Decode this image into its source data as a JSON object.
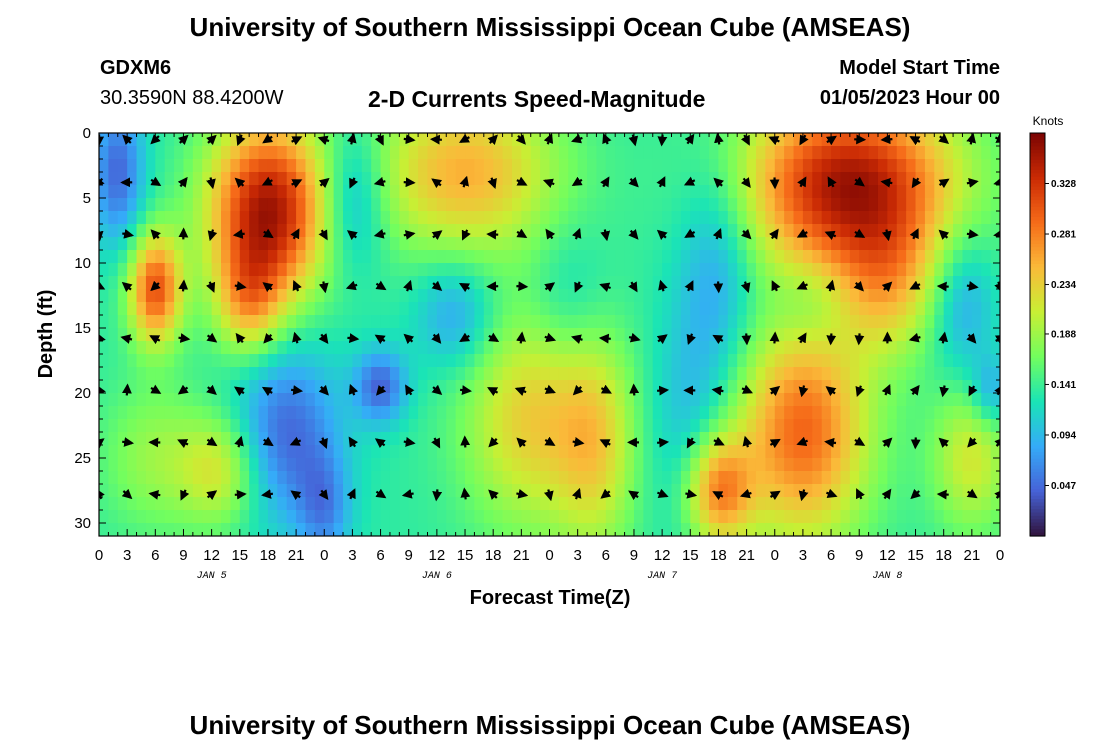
{
  "header": {
    "title": "University of Southern Mississippi Ocean Cube (AMSEAS)",
    "station_id": "GDXM6",
    "station_coords": "30.3590N  88.4200W",
    "plot_title": "2-D Currents Speed-Magnitude",
    "model_start_label": "Model Start Time",
    "model_start_value": "01/05/2023 Hour 00"
  },
  "footer": {
    "title": "University of Southern Mississippi Ocean Cube (AMSEAS)"
  },
  "colors": {
    "colormap": [
      "#30123b",
      "#4662d7",
      "#35abf8",
      "#1ae4b6",
      "#72fe5e",
      "#c8ef34",
      "#faba39",
      "#f66b19",
      "#ca2a04",
      "#7a0403"
    ]
  },
  "chart_data": {
    "type": "heatmap",
    "xlabel": "Forecast Time(Z)",
    "ylabel": "Depth (ft)",
    "xlim": [
      0,
      96
    ],
    "ylim": [
      0,
      31
    ],
    "x_ticks": [
      0,
      3,
      6,
      9,
      12,
      15,
      18,
      21,
      24,
      27,
      30,
      33,
      36,
      39,
      42,
      45,
      48,
      51,
      54,
      57,
      60,
      63,
      66,
      69,
      72,
      75,
      78,
      81,
      84,
      87,
      90,
      93,
      96
    ],
    "x_tick_labels": [
      "0",
      "3",
      "6",
      "9",
      "12",
      "15",
      "18",
      "21",
      "0",
      "3",
      "6",
      "9",
      "12",
      "15",
      "18",
      "21",
      "0",
      "3",
      "6",
      "9",
      "12",
      "15",
      "18",
      "21",
      "0",
      "3",
      "6",
      "9",
      "12",
      "15",
      "18",
      "21",
      "0"
    ],
    "y_ticks": [
      0,
      5,
      10,
      15,
      20,
      25,
      30
    ],
    "y_tick_labels": [
      "0",
      "5",
      "10",
      "15",
      "20",
      "25",
      "30"
    ],
    "date_labels": [
      {
        "x": 12,
        "label": "JAN 5"
      },
      {
        "x": 36,
        "label": "JAN 6"
      },
      {
        "x": 60,
        "label": "JAN 7"
      },
      {
        "x": 84,
        "label": "JAN 8"
      }
    ],
    "colorbar": {
      "title": "Knots",
      "range": [
        0,
        0.375
      ],
      "ticks": [
        0.047,
        0.094,
        0.141,
        0.188,
        0.234,
        0.281,
        0.328
      ],
      "tick_labels": [
        "0.047",
        "0.094",
        "0.141",
        "0.188",
        "0.234",
        "0.281",
        "0.328"
      ]
    },
    "arrow_depths_ft": [
      0.5,
      3.8,
      7.8,
      11.8,
      15.8,
      19.8,
      23.8,
      27.8
    ],
    "arrow_times_h": [
      0,
      3,
      6,
      9,
      12,
      15,
      18,
      21,
      24,
      27,
      30,
      33,
      36,
      39,
      42,
      45,
      48,
      51,
      54,
      57,
      60,
      63,
      66,
      69,
      72,
      75,
      78,
      81,
      84,
      87,
      90,
      93,
      96
    ],
    "speed_blobs_knots": [
      {
        "t": 2,
        "d": 3,
        "st": 2,
        "sd": 4,
        "amp": -0.09
      },
      {
        "t": 6,
        "d": 12,
        "st": 2,
        "sd": 3,
        "amp": 0.17
      },
      {
        "t": 18,
        "d": 6,
        "st": 4.5,
        "sd": 5,
        "amp": 0.22
      },
      {
        "t": 16,
        "d": 13,
        "st": 2.5,
        "sd": 3,
        "amp": 0.09
      },
      {
        "t": 6,
        "d": 25,
        "st": 4,
        "sd": 4,
        "amp": 0.05
      },
      {
        "t": 13,
        "d": 26,
        "st": 3,
        "sd": 3,
        "amp": 0.08
      },
      {
        "t": 20,
        "d": 23,
        "st": 4,
        "sd": 5,
        "amp": -0.09
      },
      {
        "t": 24,
        "d": 29,
        "st": 2,
        "sd": 3,
        "amp": -0.06
      },
      {
        "t": 27,
        "d": 5,
        "st": 2.5,
        "sd": 4,
        "amp": -0.07
      },
      {
        "t": 30,
        "d": 19.5,
        "st": 2,
        "sd": 2,
        "amp": -0.09
      },
      {
        "t": 39,
        "d": 3,
        "st": 7,
        "sd": 4.5,
        "amp": 0.12
      },
      {
        "t": 38,
        "d": 14,
        "st": 3,
        "sd": 3,
        "amp": -0.06
      },
      {
        "t": 46,
        "d": 22,
        "st": 5,
        "sd": 6,
        "amp": 0.1
      },
      {
        "t": 53,
        "d": 24,
        "st": 3,
        "sd": 6,
        "amp": 0.08
      },
      {
        "t": 50,
        "d": 13,
        "st": 3,
        "sd": 4,
        "amp": -0.03
      },
      {
        "t": 63,
        "d": 22,
        "st": 3,
        "sd": 6,
        "amp": -0.04
      },
      {
        "t": 66,
        "d": 10,
        "st": 3,
        "sd": 6,
        "amp": -0.06
      },
      {
        "t": 66,
        "d": 27.5,
        "st": 2.5,
        "sd": 3,
        "amp": 0.14
      },
      {
        "t": 80,
        "d": 4,
        "st": 8,
        "sd": 5,
        "amp": 0.22
      },
      {
        "t": 84,
        "d": 12,
        "st": 4,
        "sd": 4,
        "amp": 0.08
      },
      {
        "t": 75,
        "d": 23,
        "st": 5,
        "sd": 6,
        "amp": 0.16
      },
      {
        "t": 76,
        "d": 13,
        "st": 3,
        "sd": 2.5,
        "amp": -0.03
      },
      {
        "t": 92,
        "d": 13,
        "st": 2.5,
        "sd": 4,
        "amp": -0.06
      },
      {
        "t": 93,
        "d": 25,
        "st": 3,
        "sd": 4,
        "amp": 0.08
      },
      {
        "t": 95,
        "d": 20,
        "st": 1.5,
        "sd": 2,
        "amp": -0.06
      }
    ]
  }
}
